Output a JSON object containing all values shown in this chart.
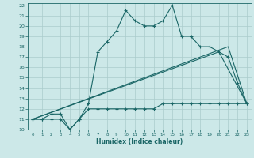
{
  "xlabel": "Humidex (Indice chaleur)",
  "bg_color": "#cce8e8",
  "grid_color": "#aacccc",
  "line_color": "#1a6666",
  "xlim": [
    -0.5,
    23.5
  ],
  "ylim": [
    10,
    22.2
  ],
  "xticks": [
    0,
    1,
    2,
    3,
    4,
    5,
    6,
    7,
    8,
    9,
    10,
    11,
    12,
    13,
    14,
    15,
    16,
    17,
    18,
    19,
    20,
    21,
    22,
    23
  ],
  "yticks": [
    10,
    11,
    12,
    13,
    14,
    15,
    16,
    17,
    18,
    19,
    20,
    21,
    22
  ],
  "line1_x": [
    0,
    1,
    2,
    3,
    4,
    5,
    6,
    7,
    8,
    9,
    10,
    11,
    12,
    13,
    14,
    15,
    16,
    17,
    18,
    19,
    20,
    21,
    22,
    23
  ],
  "line1_y": [
    11,
    11,
    11.5,
    11.5,
    10,
    11,
    12.5,
    17.5,
    18.5,
    19.5,
    21.5,
    20.5,
    20,
    20,
    20.5,
    22,
    19,
    19,
    18,
    18,
    17.5,
    17,
    14.5,
    12.5
  ],
  "line2_x": [
    0,
    1,
    2,
    3,
    4,
    5,
    6,
    7,
    8,
    9,
    10,
    11,
    12,
    13,
    14,
    15,
    16,
    17,
    18,
    19,
    20,
    21,
    22,
    23
  ],
  "line2_y": [
    11,
    11,
    11,
    11,
    10,
    11,
    12,
    12,
    12,
    12,
    12,
    12,
    12,
    12,
    12.5,
    12.5,
    12.5,
    12.5,
    12.5,
    12.5,
    12.5,
    12.5,
    12.5,
    12.5
  ],
  "line3_x": [
    0,
    21,
    23
  ],
  "line3_y": [
    11,
    18,
    12.5
  ],
  "line4_x": [
    0,
    20,
    23
  ],
  "line4_y": [
    11,
    17.5,
    12.5
  ]
}
